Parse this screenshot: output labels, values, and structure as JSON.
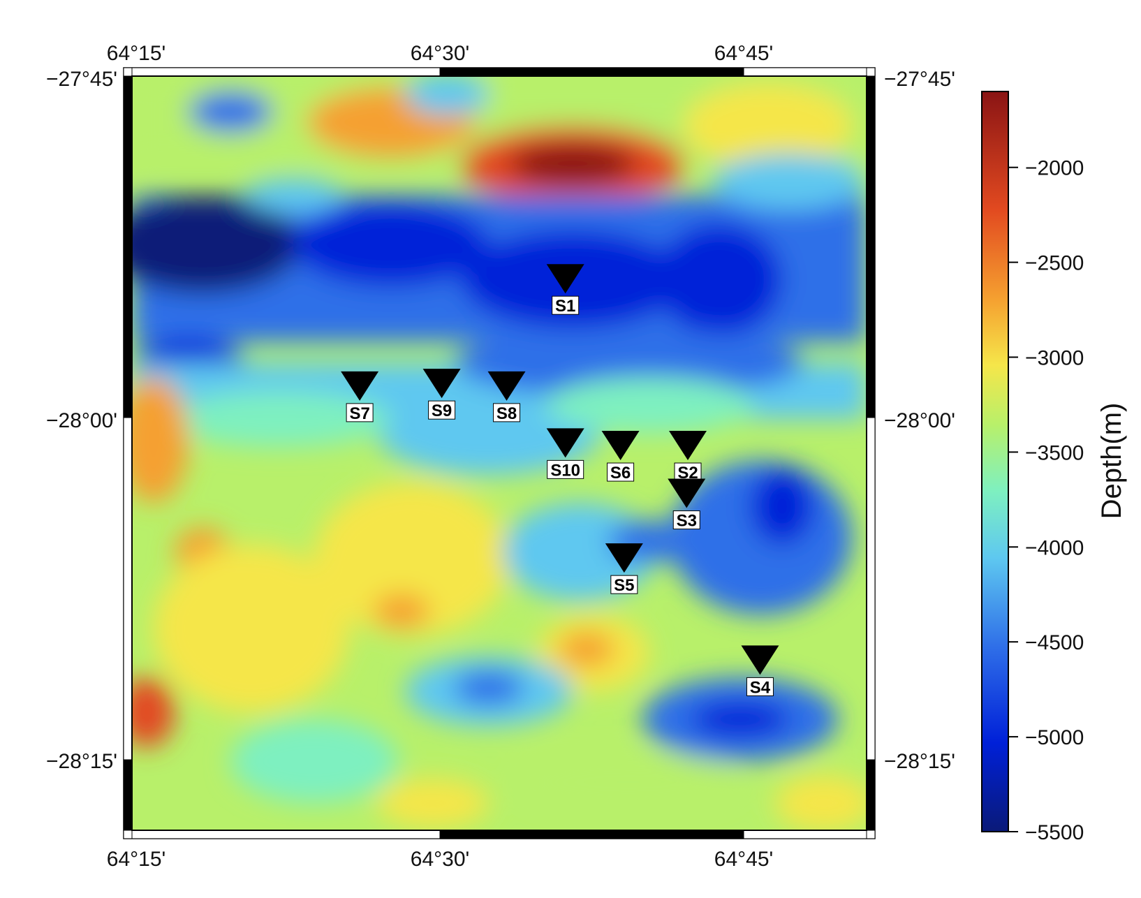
{
  "map": {
    "lon_labels": [
      "64°15'",
      "64°30'",
      "64°45'"
    ],
    "lat_labels": [
      "−27°45'",
      "−28°00'",
      "−28°15'"
    ],
    "region": {
      "lon_min": 64.25,
      "lon_max": 64.85,
      "lat_min": -28.3333,
      "lat_max": -27.75
    }
  },
  "colorbar": {
    "title": "Depth(m)",
    "ticks": [
      {
        "value": -2000,
        "label": "−2000"
      },
      {
        "value": -2500,
        "label": "−2500"
      },
      {
        "value": -3000,
        "label": "−3000"
      },
      {
        "value": -3500,
        "label": "−3500"
      },
      {
        "value": -4000,
        "label": "−4000"
      },
      {
        "value": -4500,
        "label": "−4500"
      },
      {
        "value": -5000,
        "label": "−5000"
      },
      {
        "value": -5500,
        "label": "−5500"
      }
    ],
    "range": [
      -5500,
      -1600
    ],
    "palette": [
      "#0a1a78",
      "#0020d8",
      "#2f6fe8",
      "#5ec8f0",
      "#7ef0c0",
      "#b8f06a",
      "#f5e64a",
      "#f5a030",
      "#e24a20",
      "#8a1414"
    ]
  },
  "stations": [
    {
      "name": "S1",
      "lon": 64.604,
      "lat": -27.917
    },
    {
      "name": "S2",
      "lon": 64.704,
      "lat": -28.046
    },
    {
      "name": "S3",
      "lon": 64.703,
      "lat": -28.083
    },
    {
      "name": "S4",
      "lon": 64.763,
      "lat": -28.212
    },
    {
      "name": "S5",
      "lon": 64.652,
      "lat": -28.133
    },
    {
      "name": "S6",
      "lon": 64.649,
      "lat": -28.046
    },
    {
      "name": "S7",
      "lon": 64.436,
      "lat": -28.0
    },
    {
      "name": "S8",
      "lon": 64.556,
      "lat": -28.0
    },
    {
      "name": "S9",
      "lon": 64.503,
      "lat": -27.998
    },
    {
      "name": "S10",
      "lon": 64.604,
      "lat": -28.044
    }
  ]
}
